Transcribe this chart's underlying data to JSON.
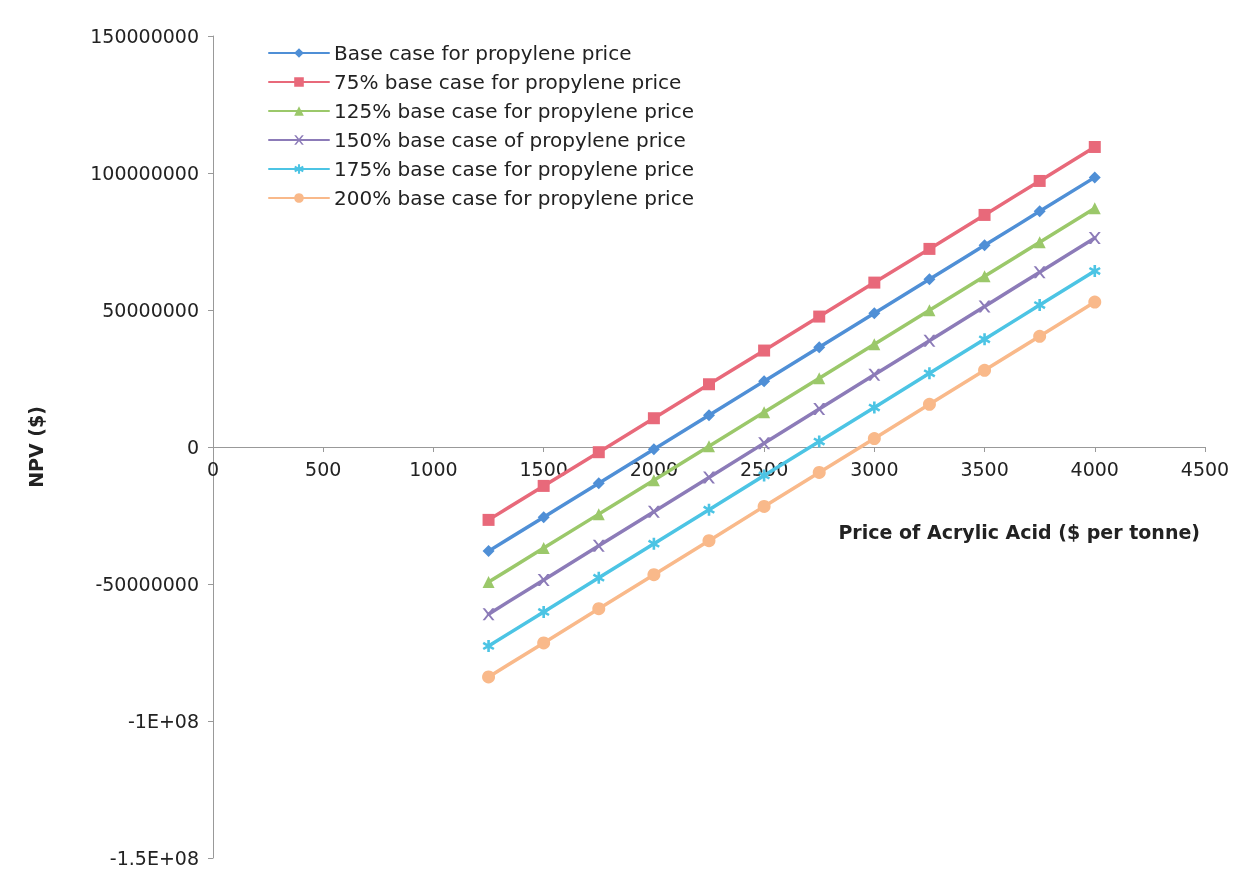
{
  "chart_data": {
    "type": "line",
    "xlabel": "Price of Acrylic Acid ($ per tonne)",
    "ylabel": "NPV ($)",
    "x": [
      1250,
      1500,
      1750,
      2000,
      2250,
      2500,
      2750,
      3000,
      3250,
      3500,
      3750,
      4000
    ],
    "series": [
      {
        "name": "Base case for propylene price",
        "color": "#4f8fd6",
        "marker": "diamond",
        "values": [
          -38000000,
          -25600000,
          -13200000,
          -800000,
          11600000,
          24000000,
          36400000,
          48800000,
          61200000,
          73600000,
          86000000,
          98400000
        ]
      },
      {
        "name": "75% base case for propylene price",
        "color": "#e8697a",
        "marker": "square",
        "values": [
          -26600000,
          -14200000,
          -1900000,
          10500000,
          22900000,
          35200000,
          47600000,
          60000000,
          72300000,
          84700000,
          97100000,
          109500000
        ]
      },
      {
        "name": "125% base case for propylene price",
        "color": "#9bc86a",
        "marker": "triangle",
        "values": [
          -49300000,
          -36900000,
          -24500000,
          -12100000,
          300000,
          12700000,
          25100000,
          37500000,
          49900000,
          62300000,
          74700000,
          87100000
        ]
      },
      {
        "name": "150% base case of propylene price",
        "color": "#8c7bb8",
        "marker": "cross",
        "values": [
          -61000000,
          -48500000,
          -36000000,
          -23600000,
          -11100000,
          1400000,
          13900000,
          26400000,
          38800000,
          51300000,
          63800000,
          76300000
        ]
      },
      {
        "name": "175% base case for propylene price",
        "color": "#4cc4e4",
        "marker": "star",
        "values": [
          -72600000,
          -60200000,
          -47700000,
          -35300000,
          -22900000,
          -10400000,
          2000000,
          14400000,
          26900000,
          39300000,
          51800000,
          64200000
        ]
      },
      {
        "name": "200% base case for propylene price",
        "color": "#f9b98a",
        "marker": "circle",
        "values": [
          -83900000,
          -71500000,
          -59000000,
          -46600000,
          -34200000,
          -21700000,
          -9300000,
          3100000,
          15600000,
          28000000,
          40400000,
          52900000
        ]
      }
    ],
    "xlim": [
      0,
      4500
    ],
    "xticks": [
      0,
      500,
      1000,
      1500,
      2000,
      2500,
      3000,
      3500,
      4000,
      4500
    ],
    "ylim": [
      -150000000,
      150000000
    ],
    "yticks": [
      {
        "value": -150000000,
        "label": "-1.5E+08"
      },
      {
        "value": -100000000,
        "label": "-1E+08"
      },
      -50000000,
      0,
      50000000,
      100000000,
      150000000
    ],
    "grid": false,
    "legend": "top left",
    "line_style": "solid"
  }
}
